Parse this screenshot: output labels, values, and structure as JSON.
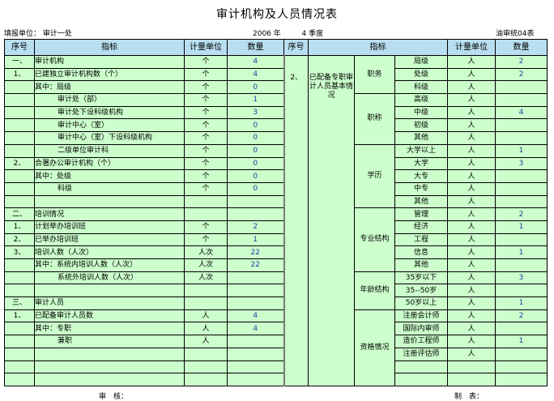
{
  "title": "审计机构及人员情况表",
  "unit_label": "填报单位：",
  "unit_value": "审计一处",
  "year": "2006",
  "year_label": "年",
  "quarter": "4",
  "quarter_label": "季度",
  "form_code": "油审统04表",
  "headers": [
    "序号",
    "指标",
    "计量单位",
    "数量"
  ],
  "left_rows": [
    [
      "一、",
      "审计机构",
      0,
      "个",
      "4"
    ],
    [
      "1、",
      "已建独立审计机构数（个）",
      0,
      "个",
      "4"
    ],
    [
      "",
      "其中：局级",
      0,
      "个",
      "0"
    ],
    [
      "",
      "审计处（部）",
      1,
      "个",
      "1"
    ],
    [
      "",
      "审计处下设科级机构",
      1,
      "个",
      "3"
    ],
    [
      "",
      "审计中心（室）",
      1,
      "个",
      "0"
    ],
    [
      "",
      "审计中心（室）下设科级机构",
      1,
      "个",
      "0"
    ],
    [
      "",
      "二级单位审计科",
      1,
      "个",
      "0"
    ],
    [
      "2、",
      "合署办公审计机构（个）",
      0,
      "个",
      "0"
    ],
    [
      "",
      "其中：处级",
      0,
      "个",
      "0"
    ],
    [
      "",
      "科级",
      1,
      "个",
      "0"
    ],
    [
      "",
      "",
      0,
      "",
      ""
    ],
    [
      "二、",
      "培训情况",
      0,
      "",
      ""
    ],
    [
      "1、",
      "计划举办培训班",
      0,
      "个",
      "2"
    ],
    [
      "2、",
      "已举办培训班",
      0,
      "个",
      "1"
    ],
    [
      "3、",
      "培训人数（人次）",
      0,
      "人次",
      "22"
    ],
    [
      "",
      "其中：系统内培训人数（人次）",
      0,
      "人次",
      "22"
    ],
    [
      "",
      "系统外培训人数（人次）",
      1,
      "人次",
      ""
    ],
    [
      "",
      "",
      0,
      "",
      ""
    ],
    [
      "三、",
      "审计人员",
      0,
      "",
      ""
    ],
    [
      "1、",
      "已配备审计人员数",
      0,
      "人",
      "4"
    ],
    [
      "",
      "其中：专职",
      0,
      "人",
      "4"
    ],
    [
      "",
      "兼职",
      1,
      "人",
      ""
    ],
    [
      "",
      "",
      0,
      "",
      ""
    ],
    [
      "",
      "",
      0,
      "",
      ""
    ],
    [
      "",
      "",
      0,
      "",
      ""
    ]
  ],
  "right": {
    "seq": "2、",
    "indicator": "已配备专职审计人员基本情况",
    "groups": [
      {
        "name": "职务",
        "items": [
          [
            "局级",
            "人",
            "2"
          ],
          [
            "处级",
            "人",
            "2"
          ],
          [
            "科级",
            "人",
            ""
          ]
        ]
      },
      {
        "name": "职称",
        "items": [
          [
            "高级",
            "人",
            ""
          ],
          [
            "中级",
            "人",
            "4"
          ],
          [
            "初级",
            "人",
            ""
          ],
          [
            "其他",
            "人",
            ""
          ]
        ]
      },
      {
        "name": "学历",
        "items": [
          [
            "大学以上",
            "人",
            "1"
          ],
          [
            "大学",
            "人",
            "3"
          ],
          [
            "大专",
            "人",
            ""
          ],
          [
            "中专",
            "人",
            ""
          ],
          [
            "其他",
            "人",
            ""
          ]
        ]
      },
      {
        "name": "专业结构",
        "items": [
          [
            "管理",
            "人",
            "2"
          ],
          [
            "经济",
            "人",
            "1"
          ],
          [
            "工程",
            "人",
            ""
          ],
          [
            "信息",
            "人",
            "1"
          ],
          [
            "其他",
            "人",
            ""
          ]
        ]
      },
      {
        "name": "年龄结构",
        "items": [
          [
            "35岁以下",
            "人",
            "3"
          ],
          [
            "35--50岁",
            "人",
            ""
          ],
          [
            "50岁以上",
            "人",
            "1"
          ]
        ]
      },
      {
        "name": "资格情况",
        "items": [
          [
            "注册会计师",
            "人",
            "2"
          ],
          [
            "国际内审师",
            "人",
            ""
          ],
          [
            "造价工程师",
            "人",
            "1"
          ],
          [
            "注册评估师",
            "人",
            ""
          ],
          [
            "",
            "",
            ""
          ],
          [
            "",
            "",
            ""
          ]
        ]
      }
    ]
  },
  "footer": {
    "review": "审　核：",
    "prepared": "制　表："
  },
  "colors": {
    "header_bg": "#b8def0",
    "body_bg": "#ccffcc",
    "number": "#1f3f9f"
  }
}
